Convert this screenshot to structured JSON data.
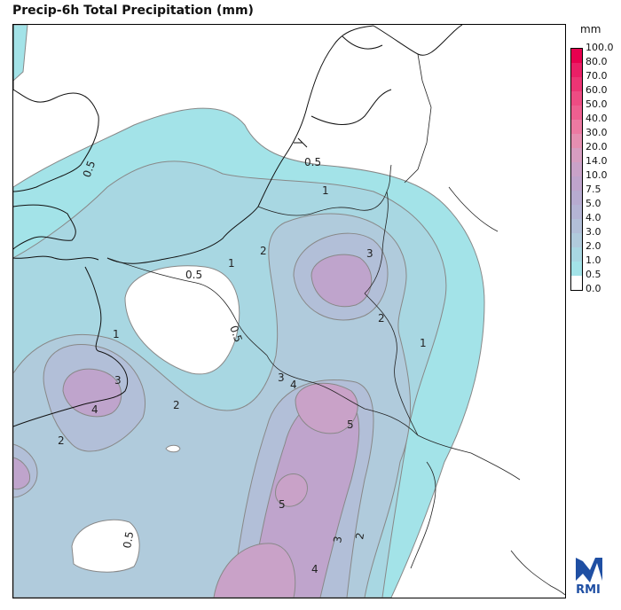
{
  "title": "Precip-6h Total Precipitation (mm)",
  "legend": {
    "unit": "mm",
    "levels": [
      "100.0",
      "80.0",
      "70.0",
      "60.0",
      "50.0",
      "40.0",
      "30.0",
      "20.0",
      "14.0",
      "10.0",
      "7.5",
      "5.0",
      "4.0",
      "3.0",
      "2.0",
      "1.0",
      "0.5",
      "0.0"
    ],
    "colors": [
      "#e8004f",
      "#ea1f66",
      "#ec3574",
      "#ee4c83",
      "#ee5f90",
      "#ec7aa2",
      "#e58fb1",
      "#d69dc0",
      "#c9a2c8",
      "#bfa4cc",
      "#b7abd0",
      "#b4b4d4",
      "#b2bfd8",
      "#b0cbdc",
      "#a8d7e2",
      "#a3e3e8",
      "#ffffff"
    ]
  },
  "contour_labels": {
    "a": "0.5",
    "b": "0.5",
    "c": "0.5",
    "d": "0.5",
    "e": "0.5",
    "f": "1",
    "g": "1",
    "h": "1",
    "i": "1",
    "j": "2",
    "k": "2",
    "l": "2",
    "m": "2",
    "n": "2",
    "o": "3",
    "p": "3",
    "q": "3",
    "r": "3",
    "s": "4",
    "t": "4",
    "u": "4",
    "v": "5",
    "w": "5"
  },
  "logo_text": "RMI"
}
